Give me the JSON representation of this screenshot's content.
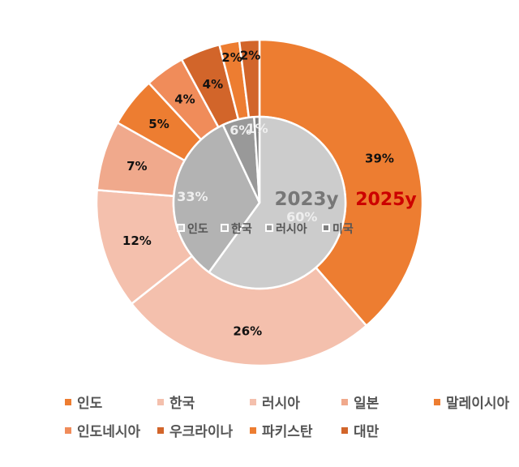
{
  "chart_data": {
    "type": "pie",
    "subtype": "nested-donut",
    "center": [
      320,
      250
    ],
    "series": [
      {
        "name": "2025y",
        "ring": "outer",
        "categories": [
          "인도",
          "한국",
          "러시아",
          "일본",
          "말레이시아",
          "인도네시아",
          "우크라이나",
          "파키스탄",
          "대만"
        ],
        "values": [
          39,
          26,
          12,
          7,
          5,
          4,
          4,
          2,
          2
        ],
        "labels": [
          "39%",
          "26%",
          "12%",
          "7%",
          "5%",
          "4%",
          "4%",
          "2%",
          "2%"
        ],
        "colors": [
          "#ED7D31",
          "#F4C0AD",
          "#F4C0AD",
          "#F0A98C",
          "#ED7D31",
          "#F08C5A",
          "#D2652A",
          "#ED7D31",
          "#D2652A"
        ],
        "label_color": "#111111",
        "title_color": "#CC0000"
      },
      {
        "name": "2023y",
        "ring": "inner",
        "categories": [
          "인도",
          "한국",
          "러시아",
          "미국"
        ],
        "values": [
          60,
          33,
          6,
          1
        ],
        "labels": [
          "60%",
          "33%",
          "6%",
          "1%"
        ],
        "colors": [
          "#CCCCCC",
          "#B3B3B3",
          "#999999",
          "#7F7F7F"
        ],
        "label_color": "#EEEEEE",
        "title_color": "#777777"
      }
    ],
    "inner_legend": [
      {
        "label": "인도",
        "color": "#CCCCCC"
      },
      {
        "label": "한국",
        "color": "#B3B3B3"
      },
      {
        "label": "러시아",
        "color": "#999999"
      },
      {
        "label": "미국",
        "color": "#7F7F7F"
      }
    ],
    "legend": [
      {
        "label": "인도",
        "color": "#ED7D31"
      },
      {
        "label": "한국",
        "color": "#F4C0AD"
      },
      {
        "label": "러시아",
        "color": "#F4C0AD"
      },
      {
        "label": "일본",
        "color": "#F0A98C"
      },
      {
        "label": "말레이시아",
        "color": "#ED7D31"
      },
      {
        "label": "인도네시아",
        "color": "#F08C5A"
      },
      {
        "label": "우크라이나",
        "color": "#D2652A"
      },
      {
        "label": "파키스탄",
        "color": "#ED7D31"
      },
      {
        "label": "대만",
        "color": "#D2652A"
      }
    ],
    "legend_position": "bottom"
  }
}
